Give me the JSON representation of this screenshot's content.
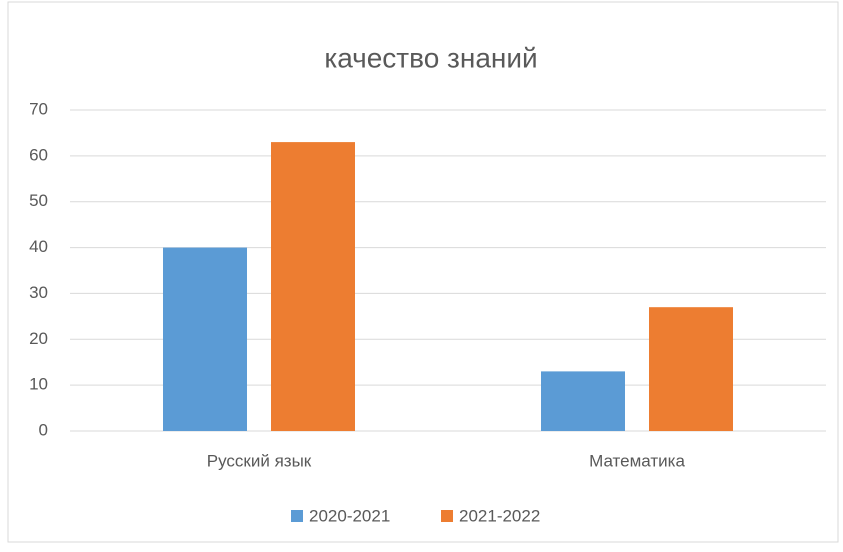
{
  "chart_data": {
    "type": "bar",
    "title": "качество знаний",
    "categories": [
      "Русский язык",
      "Математика"
    ],
    "series": [
      {
        "name": "2020-2021",
        "color": "#5b9bd5",
        "values": [
          40,
          13
        ]
      },
      {
        "name": "2021-2022",
        "color": "#ed7d31",
        "values": [
          63,
          27
        ]
      }
    ],
    "ylim": [
      0,
      70
    ],
    "yticks": [
      0,
      10,
      20,
      30,
      40,
      50,
      60,
      70
    ],
    "grid": true,
    "legend": "bottom"
  }
}
